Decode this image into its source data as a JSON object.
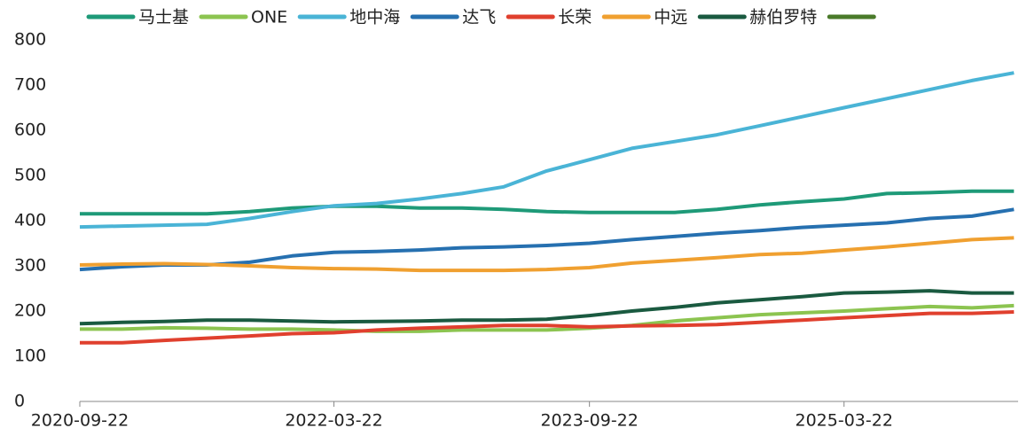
{
  "chart_data": {
    "type": "line",
    "x": [
      "2020-09-22",
      "2020-12-22",
      "2021-03-22",
      "2021-06-22",
      "2021-09-22",
      "2021-12-22",
      "2022-03-22",
      "2022-06-22",
      "2022-09-22",
      "2022-12-22",
      "2023-03-22",
      "2023-06-22",
      "2023-09-22",
      "2023-12-22",
      "2024-03-22",
      "2024-06-22",
      "2024-09-22",
      "2024-12-22",
      "2025-03-22",
      "2025-06-22",
      "2025-09-22",
      "2025-12-22",
      "2026-03-22"
    ],
    "xlim": [
      "2020-09-22",
      "2026-03-31"
    ],
    "xticks": [
      "2020-09-22",
      "2022-03-22",
      "2023-09-22",
      "2025-03-22"
    ],
    "ylim": [
      0,
      800
    ],
    "yticks": [
      0,
      100,
      200,
      300,
      400,
      500,
      600,
      700,
      800
    ],
    "grid": false,
    "series": [
      {
        "name": "马士基",
        "color": "#1e9a78",
        "values": [
          415,
          415,
          415,
          415,
          420,
          428,
          432,
          432,
          428,
          428,
          425,
          420,
          418,
          418,
          418,
          425,
          435,
          442,
          448,
          460,
          462,
          465,
          465
        ]
      },
      {
        "name": "ONE",
        "color": "#8cc450",
        "values": [
          160,
          160,
          163,
          162,
          160,
          160,
          158,
          155,
          155,
          158,
          158,
          158,
          162,
          168,
          178,
          185,
          192,
          196,
          200,
          205,
          210,
          207,
          212
        ]
      },
      {
        "name": "地中海",
        "color": "#4ab4d6",
        "values": [
          386,
          388,
          390,
          392,
          405,
          420,
          433,
          438,
          448,
          460,
          475,
          510,
          535,
          560,
          575,
          590,
          610,
          630,
          650,
          670,
          690,
          710,
          727
        ]
      },
      {
        "name": "达飞",
        "color": "#2670b0",
        "values": [
          292,
          298,
          302,
          302,
          308,
          322,
          330,
          332,
          335,
          340,
          342,
          345,
          350,
          358,
          365,
          372,
          378,
          385,
          390,
          395,
          405,
          410,
          425
        ]
      },
      {
        "name": "长荣",
        "color": "#e0402e",
        "values": [
          130,
          130,
          135,
          140,
          145,
          150,
          152,
          158,
          162,
          165,
          168,
          168,
          165,
          167,
          168,
          170,
          175,
          180,
          185,
          190,
          195,
          195,
          198
        ]
      },
      {
        "name": "中远",
        "color": "#f0a030",
        "values": [
          302,
          304,
          305,
          303,
          300,
          296,
          294,
          293,
          290,
          290,
          290,
          292,
          296,
          306,
          312,
          318,
          325,
          328,
          335,
          342,
          350,
          358,
          362
        ]
      },
      {
        "name": "赫伯罗特",
        "color": "#1a5a40",
        "values": [
          172,
          175,
          177,
          180,
          180,
          178,
          176,
          177,
          178,
          180,
          180,
          182,
          190,
          200,
          208,
          218,
          225,
          232,
          240,
          242,
          245,
          240,
          240
        ]
      },
      {
        "color": "#4a7a2a",
        "values": [
          null,
          null,
          null,
          null,
          null,
          null,
          null,
          null,
          null,
          null,
          null,
          null,
          null,
          null,
          null,
          null,
          null,
          null,
          null,
          null,
          null,
          null,
          null
        ]
      }
    ]
  }
}
